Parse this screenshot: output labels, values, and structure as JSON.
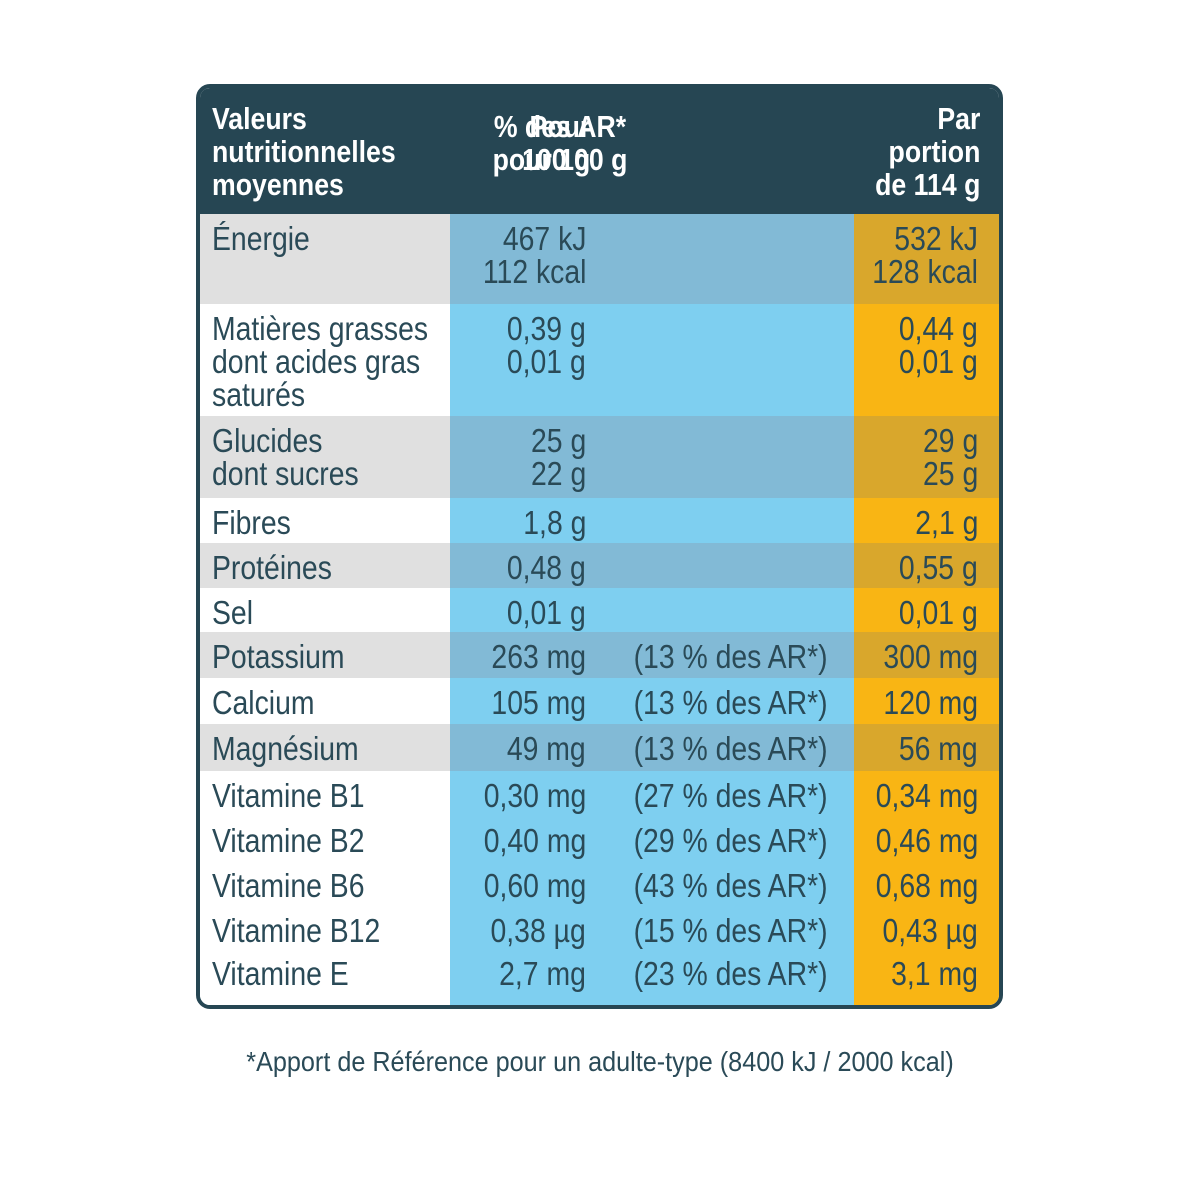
{
  "header": {
    "col_label": "Valeurs\nnutritionnelles\nmoyennes",
    "col_per100": "Pour\n100 g",
    "col_ar": "% des AR*\npour 100 g",
    "col_portion": "Par\nportion\nde 114 g"
  },
  "colors": {
    "header_bg": "#264653",
    "label_shaded": "#e0e0e0",
    "label_plain": "#ffffff",
    "blue_shaded": "#82bad6",
    "blue_plain": "#7ecff0",
    "gold_shaded": "#d9a72c",
    "gold_plain": "#f9b514"
  },
  "rows": [
    {
      "label": "Énergie",
      "per100": "467 kJ\n112 kcal",
      "ar": "",
      "portion": "532 kJ\n128 kcal",
      "shaded": true
    },
    {
      "label": "Matières grasses\ndont acides gras\nsaturés",
      "per100": "0,39 g\n0,01 g",
      "ar": "",
      "portion": "0,44 g\n0,01 g",
      "shaded": false
    },
    {
      "label": "Glucides\ndont sucres",
      "per100": "25 g\n22 g",
      "ar": "",
      "portion": "29 g\n25 g",
      "shaded": true
    },
    {
      "label": "Fibres",
      "per100": "1,8 g",
      "ar": "",
      "portion": "2,1 g",
      "shaded": false
    },
    {
      "label": "Protéines",
      "per100": "0,48 g",
      "ar": "",
      "portion": "0,55 g",
      "shaded": true
    },
    {
      "label": "Sel",
      "per100": "0,01 g",
      "ar": "",
      "portion": "0,01 g",
      "shaded": false
    },
    {
      "label": "Potassium",
      "per100": "263 mg",
      "ar": "(13 % des AR*)",
      "portion": "300 mg",
      "shaded": true
    },
    {
      "label": "Calcium",
      "per100": "105 mg",
      "ar": "(13 % des AR*)",
      "portion": "120 mg",
      "shaded": false
    },
    {
      "label": "Magnésium",
      "per100": "49 mg",
      "ar": "(13 % des AR*)",
      "portion": "56 mg",
      "shaded": true
    },
    {
      "label": "Vitamine B1",
      "per100": "0,30 mg",
      "ar": "(27 % des AR*)",
      "portion": "0,34 mg",
      "shaded": false
    },
    {
      "label": "Vitamine B2",
      "per100": "0,40 mg",
      "ar": "(29 % des AR*)",
      "portion": "0,46 mg",
      "shaded": false
    },
    {
      "label": "Vitamine B6",
      "per100": "0,60 mg",
      "ar": "(43 % des AR*)",
      "portion": "0,68 mg",
      "shaded": false
    },
    {
      "label": "Vitamine B12",
      "per100": "0,38 µg",
      "ar": "(15 % des AR*)",
      "portion": "0,43 µg",
      "shaded": false
    },
    {
      "label": "Vitamine E",
      "per100": "2,7 mg",
      "ar": "(23 % des AR*)",
      "portion": "3,1 mg",
      "shaded": false
    }
  ],
  "footnote": "*Apport de Référence pour un adulte-type (8400 kJ / 2000 kcal)"
}
